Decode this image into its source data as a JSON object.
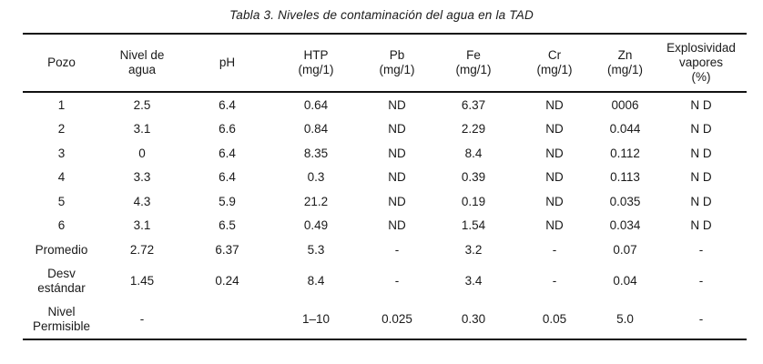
{
  "page": {
    "title": "Tabla 3. Niveles de contaminación del agua en la TAD"
  },
  "table": {
    "columns": [
      {
        "label": "Pozo"
      },
      {
        "label": "Nivel de\nagua"
      },
      {
        "label": "pH"
      },
      {
        "label": "HTP\n(mg/1)"
      },
      {
        "label": "Pb\n(mg/1)"
      },
      {
        "label": "Fe\n(mg/1)"
      },
      {
        "label": "Cr\n(mg/1)"
      },
      {
        "label": "Zn\n(mg/1)"
      },
      {
        "label": "Explosividad\nvapores\n(%)"
      }
    ],
    "rows": [
      [
        "1",
        "2.5",
        "6.4",
        "0.64",
        "ND",
        "6.37",
        "ND",
        "0006",
        "N D"
      ],
      [
        "2",
        "3.1",
        "6.6",
        "0.84",
        "ND",
        "2.29",
        "ND",
        "0.044",
        "N D"
      ],
      [
        "3",
        "0",
        "6.4",
        "8.35",
        "ND",
        "8.4",
        "ND",
        "0.112",
        "N D"
      ],
      [
        "4",
        "3.3",
        "6.4",
        "0.3",
        "ND",
        "0.39",
        "ND",
        "0.113",
        "N D"
      ],
      [
        "5",
        "4.3",
        "5.9",
        "21.2",
        "ND",
        "0.19",
        "ND",
        "0.035",
        "N D"
      ],
      [
        "6",
        "3.1",
        "6.5",
        "0.49",
        "ND",
        "1.54",
        "ND",
        "0.034",
        "N D"
      ],
      [
        "Promedio",
        "2.72",
        "6.37",
        "5.3",
        "-",
        "3.2",
        "-",
        "0.07",
        "-"
      ],
      [
        "Desv\nestándar",
        "1.45",
        "0.24",
        "8.4",
        "-",
        "3.4",
        "-",
        "0.04",
        "-"
      ],
      [
        "Nivel\nPermisible",
        "-",
        "",
        "1–10",
        "0.025",
        "0.30",
        "0.05",
        "5.0",
        "-"
      ]
    ]
  }
}
